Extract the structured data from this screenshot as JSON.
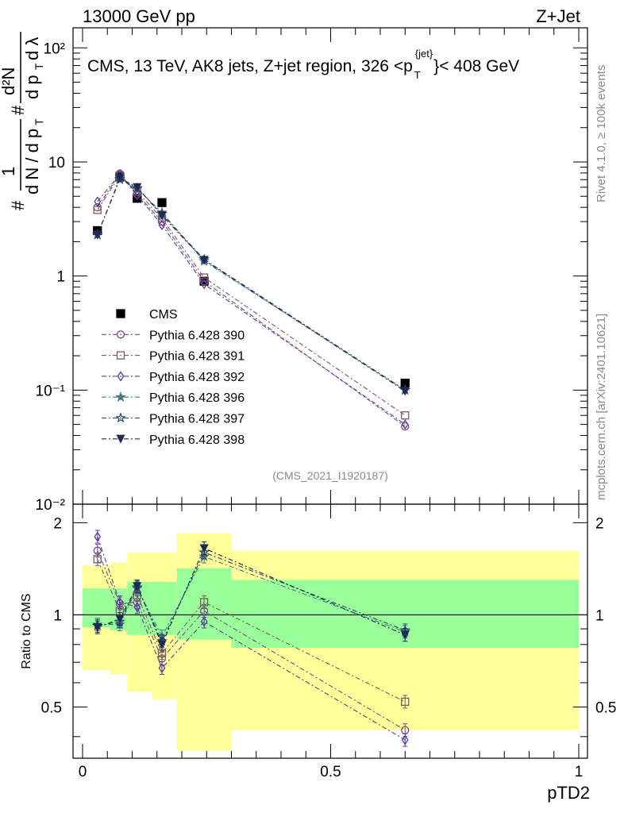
{
  "header": {
    "left": "13000 GeV pp",
    "right": "Z+Jet"
  },
  "side": {
    "rivet": "Rivet 4.1.0, ≥ 100k events",
    "mcplots": "mcplots.cern.ch [arXiv:2401.10621]"
  },
  "chart_data": {
    "type": "scatter",
    "title": "CMS, 13 TeV, AK8 jets, Z+jet region, 326 <p",
    "title_sup": "{jet}",
    "title_sub": "T",
    "title_tail": "}< 408 GeV",
    "analysis_tag": "(CMS_2021_I1920187)",
    "xlabel": "pTD2",
    "ylabel_ratio": "Ratio to CMS",
    "xlim": [
      0,
      1
    ],
    "ylim_main": [
      0.01,
      150
    ],
    "yscale_main": "log",
    "ylim_ratio": [
      0.34,
      2.3
    ],
    "yscale_ratio": "log",
    "x_ticks": [
      "0",
      "0.5",
      "1"
    ],
    "y_ticks_main": [
      "10⁻²",
      "10⁻¹",
      "1",
      "10",
      "10²"
    ],
    "y_ticks_ratio": [
      "0.5",
      "1",
      "2"
    ],
    "bin_edges": [
      0,
      0.055,
      0.09,
      0.14,
      0.19,
      0.3,
      1.0
    ],
    "x": [
      0.03,
      0.075,
      0.11,
      0.16,
      0.245,
      0.65
    ],
    "legend_position": "middle-left",
    "ratio_bands": {
      "inner": [
        [
          0.91,
          1.22
        ],
        [
          0.89,
          1.22
        ],
        [
          0.86,
          1.28
        ],
        [
          0.86,
          1.28
        ],
        [
          0.83,
          1.42
        ],
        [
          0.78,
          1.3
        ]
      ],
      "outer": [
        [
          0.66,
          1.45
        ],
        [
          0.64,
          1.48
        ],
        [
          0.56,
          1.6
        ],
        [
          0.53,
          1.6
        ],
        [
          0.36,
          1.85
        ],
        [
          0.42,
          1.62
        ]
      ]
    },
    "series": [
      {
        "name": "CMS",
        "marker": "square-filled",
        "color": "#000000",
        "values": [
          2.5,
          7.4,
          4.8,
          4.4,
          0.9,
          0.115
        ],
        "ratio": [
          1.0,
          1.0,
          1.0,
          1.0,
          1.0,
          1.0
        ]
      },
      {
        "name": "Pythia 6.428 390",
        "marker": "circle-open",
        "color": "#7a4a88",
        "values": [
          4.0,
          7.9,
          5.2,
          3.0,
          0.9,
          0.048
        ],
        "ratio": [
          1.62,
          1.09,
          1.1,
          0.72,
          1.03,
          0.42
        ]
      },
      {
        "name": "Pythia 6.428 391",
        "marker": "square-open",
        "color": "#7a5a62",
        "values": [
          3.8,
          7.6,
          5.5,
          3.2,
          0.97,
          0.06
        ],
        "ratio": [
          1.52,
          1.03,
          1.16,
          0.75,
          1.1,
          0.52
        ]
      },
      {
        "name": "Pythia 6.428 392",
        "marker": "diamond-open",
        "color": "#5a3aa0",
        "values": [
          4.5,
          7.8,
          5.1,
          2.8,
          0.85,
          0.05
        ],
        "ratio": [
          1.8,
          1.1,
          1.06,
          0.67,
          0.95,
          0.39
        ]
      },
      {
        "name": "Pythia 6.428 396",
        "marker": "star-filled",
        "color": "#4a7a8a",
        "values": [
          2.3,
          7.0,
          5.8,
          3.6,
          1.35,
          0.1
        ],
        "ratio": [
          0.93,
          0.93,
          1.22,
          0.85,
          1.55,
          0.88
        ]
      },
      {
        "name": "Pythia 6.428 397",
        "marker": "star-open",
        "color": "#2a4a6a",
        "values": [
          2.3,
          7.1,
          5.9,
          3.5,
          1.4,
          0.1
        ],
        "ratio": [
          0.92,
          0.95,
          1.23,
          0.82,
          1.6,
          0.89
        ]
      },
      {
        "name": "Pythia 6.428 398",
        "marker": "triangle-down-filled",
        "color": "#1e2a55",
        "values": [
          2.3,
          7.2,
          6.0,
          3.4,
          1.38,
          0.098
        ],
        "ratio": [
          0.91,
          0.97,
          1.24,
          0.8,
          1.65,
          0.86
        ]
      }
    ]
  }
}
